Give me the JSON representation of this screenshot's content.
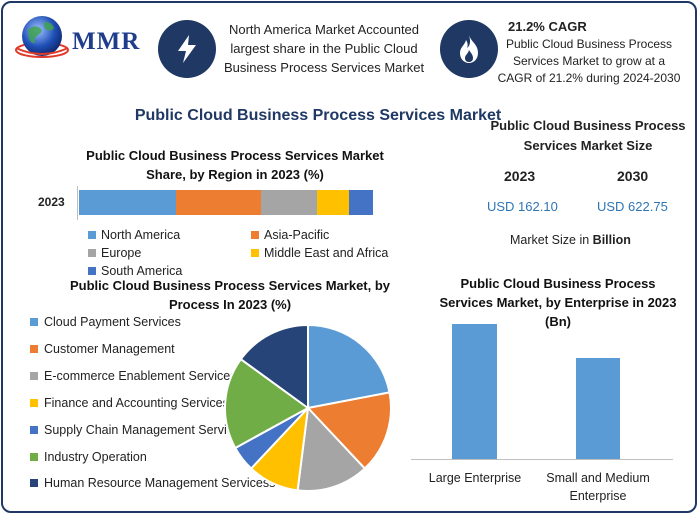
{
  "brand": {
    "logo_text": "MMR"
  },
  "header": {
    "info_text": "North America Market Accounted largest share in the Public Cloud Business Process Services Market",
    "cagr_title": "21.2% CAGR",
    "cagr_text": "Public Cloud Business Process Services Market to grow at a CAGR of 21.2% during 2024-2030",
    "icons": [
      "lightning-bolt-icon",
      "flame-icon"
    ]
  },
  "main_title": "Public Cloud Business Process Services Market",
  "colors": {
    "blue": "#5b9bd5",
    "orange": "#ed7d31",
    "gray": "#a5a5a5",
    "yellow": "#ffc000",
    "dark_blue": "#4472c4",
    "green": "#70ad47",
    "navy": "#264478",
    "title": "#1f3864"
  },
  "market_size": {
    "title": "Public Cloud Business Process Services Market Size",
    "year1": "2023",
    "year2": "2030",
    "value1": "USD 162.10",
    "value2": "USD 622.75",
    "note_prefix": "Market Size in ",
    "note_unit": "Billion"
  },
  "chart_data": [
    {
      "type": "bar",
      "orientation": "horizontal-stacked",
      "title": "Public Cloud Business Process Services Market Share, by Region in 2023 (%)",
      "categories": [
        "2023"
      ],
      "series": [
        {
          "name": "North America",
          "values": [
            33
          ]
        },
        {
          "name": "Asia-Pacific",
          "values": [
            29
          ]
        },
        {
          "name": "Europe",
          "values": [
            19
          ]
        },
        {
          "name": "Middle East and Africa",
          "values": [
            11
          ]
        },
        {
          "name": "South America",
          "values": [
            8
          ]
        }
      ],
      "legend_position": "bottom"
    },
    {
      "type": "pie",
      "title": "Public Cloud Business Process Services Market, by Process In 2023 (%)",
      "labels": [
        "Cloud Payment Services",
        "Customer Management",
        "E-commerce Enablement Services",
        "Finance and Accounting Services",
        "Supply Chain Management Services",
        "Industry Operation",
        "Human Resource Management Servicess"
      ],
      "values": [
        22,
        16,
        14,
        10,
        5,
        18,
        15
      ],
      "legend_position": "left"
    },
    {
      "type": "bar",
      "title": "Public Cloud Business Process Services Market, by Enterprise in 2023 (Bn)",
      "categories": [
        "Large Enterprise",
        "Small and Medium Enterprise"
      ],
      "values": [
        100,
        75
      ]
    }
  ]
}
